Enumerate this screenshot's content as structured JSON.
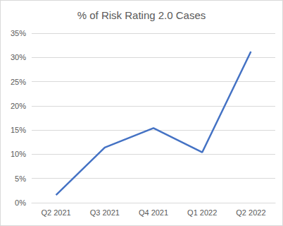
{
  "chart_data": {
    "type": "line",
    "title": "% of Risk Rating 2.0 Cases",
    "categories": [
      "Q2 2021",
      "Q3 2021",
      "Q4 2021",
      "Q1 2022",
      "Q2 2022"
    ],
    "values": [
      1.6,
      11.4,
      15.4,
      10.4,
      31.2
    ],
    "color": "#4472c4",
    "marker": "none",
    "ylim": [
      0,
      35
    ],
    "yticks": [
      {
        "value": 0,
        "label": "0%"
      },
      {
        "value": 5,
        "label": "5%"
      },
      {
        "value": 10,
        "label": "10%"
      },
      {
        "value": 15,
        "label": "15%"
      },
      {
        "value": 20,
        "label": "20%"
      },
      {
        "value": 25,
        "label": "25%"
      },
      {
        "value": 30,
        "label": "30%"
      },
      {
        "value": 35,
        "label": "35%"
      }
    ],
    "grid": true
  }
}
